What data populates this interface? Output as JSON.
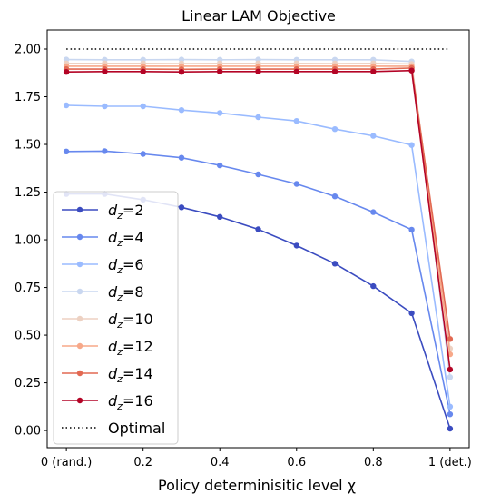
{
  "chart_data": {
    "type": "line",
    "title": "Linear LAM Objective",
    "xlabel": "Policy determinisitic level χ",
    "ylabel": "",
    "x": [
      0,
      0.1,
      0.2,
      0.3,
      0.4,
      0.5,
      0.6,
      0.7,
      0.8,
      0.9,
      1.0
    ],
    "xlim": [
      -0.05,
      1.05
    ],
    "ylim": [
      -0.09,
      2.1
    ],
    "x_ticks": [
      {
        "value": 0,
        "label": "0 (rand.)"
      },
      {
        "value": 0.2,
        "label": "0.2"
      },
      {
        "value": 0.4,
        "label": "0.4"
      },
      {
        "value": 0.6,
        "label": "0.6"
      },
      {
        "value": 0.8,
        "label": "0.8"
      },
      {
        "value": 1.0,
        "label": "1 (det.)"
      }
    ],
    "y_ticks": [
      {
        "value": 0.0,
        "label": "0.00"
      },
      {
        "value": 0.25,
        "label": "0.25"
      },
      {
        "value": 0.5,
        "label": "0.50"
      },
      {
        "value": 0.75,
        "label": "0.75"
      },
      {
        "value": 1.0,
        "label": "1.00"
      },
      {
        "value": 1.25,
        "label": "1.25"
      },
      {
        "value": 1.5,
        "label": "1.50"
      },
      {
        "value": 1.75,
        "label": "1.75"
      },
      {
        "value": 2.0,
        "label": "2.00"
      }
    ],
    "grid": false,
    "legend_position": "lower-left",
    "series": [
      {
        "name": "dz=2",
        "subscript_base": "d",
        "subscript": "z",
        "value_text": "=2",
        "color": "#3b4cc0",
        "values": [
          1.24,
          1.24,
          1.21,
          1.17,
          1.12,
          1.055,
          0.97,
          0.875,
          0.757,
          0.615,
          0.01
        ]
      },
      {
        "name": "dz=4",
        "subscript_base": "d",
        "subscript": "z",
        "value_text": "=4",
        "color": "#6788ee",
        "values": [
          1.463,
          1.465,
          1.45,
          1.43,
          1.39,
          1.343,
          1.293,
          1.228,
          1.145,
          1.053,
          0.085
        ]
      },
      {
        "name": "dz=6",
        "subscript_base": "d",
        "subscript": "z",
        "value_text": "=6",
        "color": "#9abbff",
        "values": [
          1.705,
          1.7,
          1.7,
          1.68,
          1.665,
          1.643,
          1.623,
          1.58,
          1.545,
          1.497,
          0.125
        ]
      },
      {
        "name": "dz=8",
        "subscript_base": "d",
        "subscript": "z",
        "value_text": "=8",
        "color": "#c9d7f0",
        "values": [
          1.945,
          1.944,
          1.944,
          1.945,
          1.944,
          1.945,
          1.944,
          1.944,
          1.944,
          1.935,
          0.28
        ]
      },
      {
        "name": "dz=10",
        "subscript_base": "d",
        "subscript": "z",
        "value_text": "=10",
        "color": "#edd1c2",
        "values": [
          1.925,
          1.925,
          1.925,
          1.924,
          1.925,
          1.925,
          1.925,
          1.924,
          1.925,
          1.922,
          0.43
        ]
      },
      {
        "name": "dz=12",
        "subscript_base": "d",
        "subscript": "z",
        "value_text": "=12",
        "color": "#f7a889",
        "values": [
          1.91,
          1.91,
          1.91,
          1.91,
          1.91,
          1.91,
          1.91,
          1.91,
          1.91,
          1.91,
          0.4
        ]
      },
      {
        "name": "dz=14",
        "subscript_base": "d",
        "subscript": "z",
        "value_text": "=14",
        "color": "#e26952",
        "values": [
          1.895,
          1.895,
          1.895,
          1.894,
          1.895,
          1.895,
          1.895,
          1.895,
          1.895,
          1.9,
          0.48
        ]
      },
      {
        "name": "dz=16",
        "subscript_base": "d",
        "subscript": "z",
        "value_text": "=16",
        "color": "#b40426",
        "values": [
          1.88,
          1.882,
          1.882,
          1.88,
          1.882,
          1.882,
          1.882,
          1.882,
          1.882,
          1.887,
          0.32
        ]
      }
    ],
    "optimal": {
      "label": "Optimal",
      "value": 2.0,
      "style": "dotted",
      "color": "#000000"
    }
  }
}
